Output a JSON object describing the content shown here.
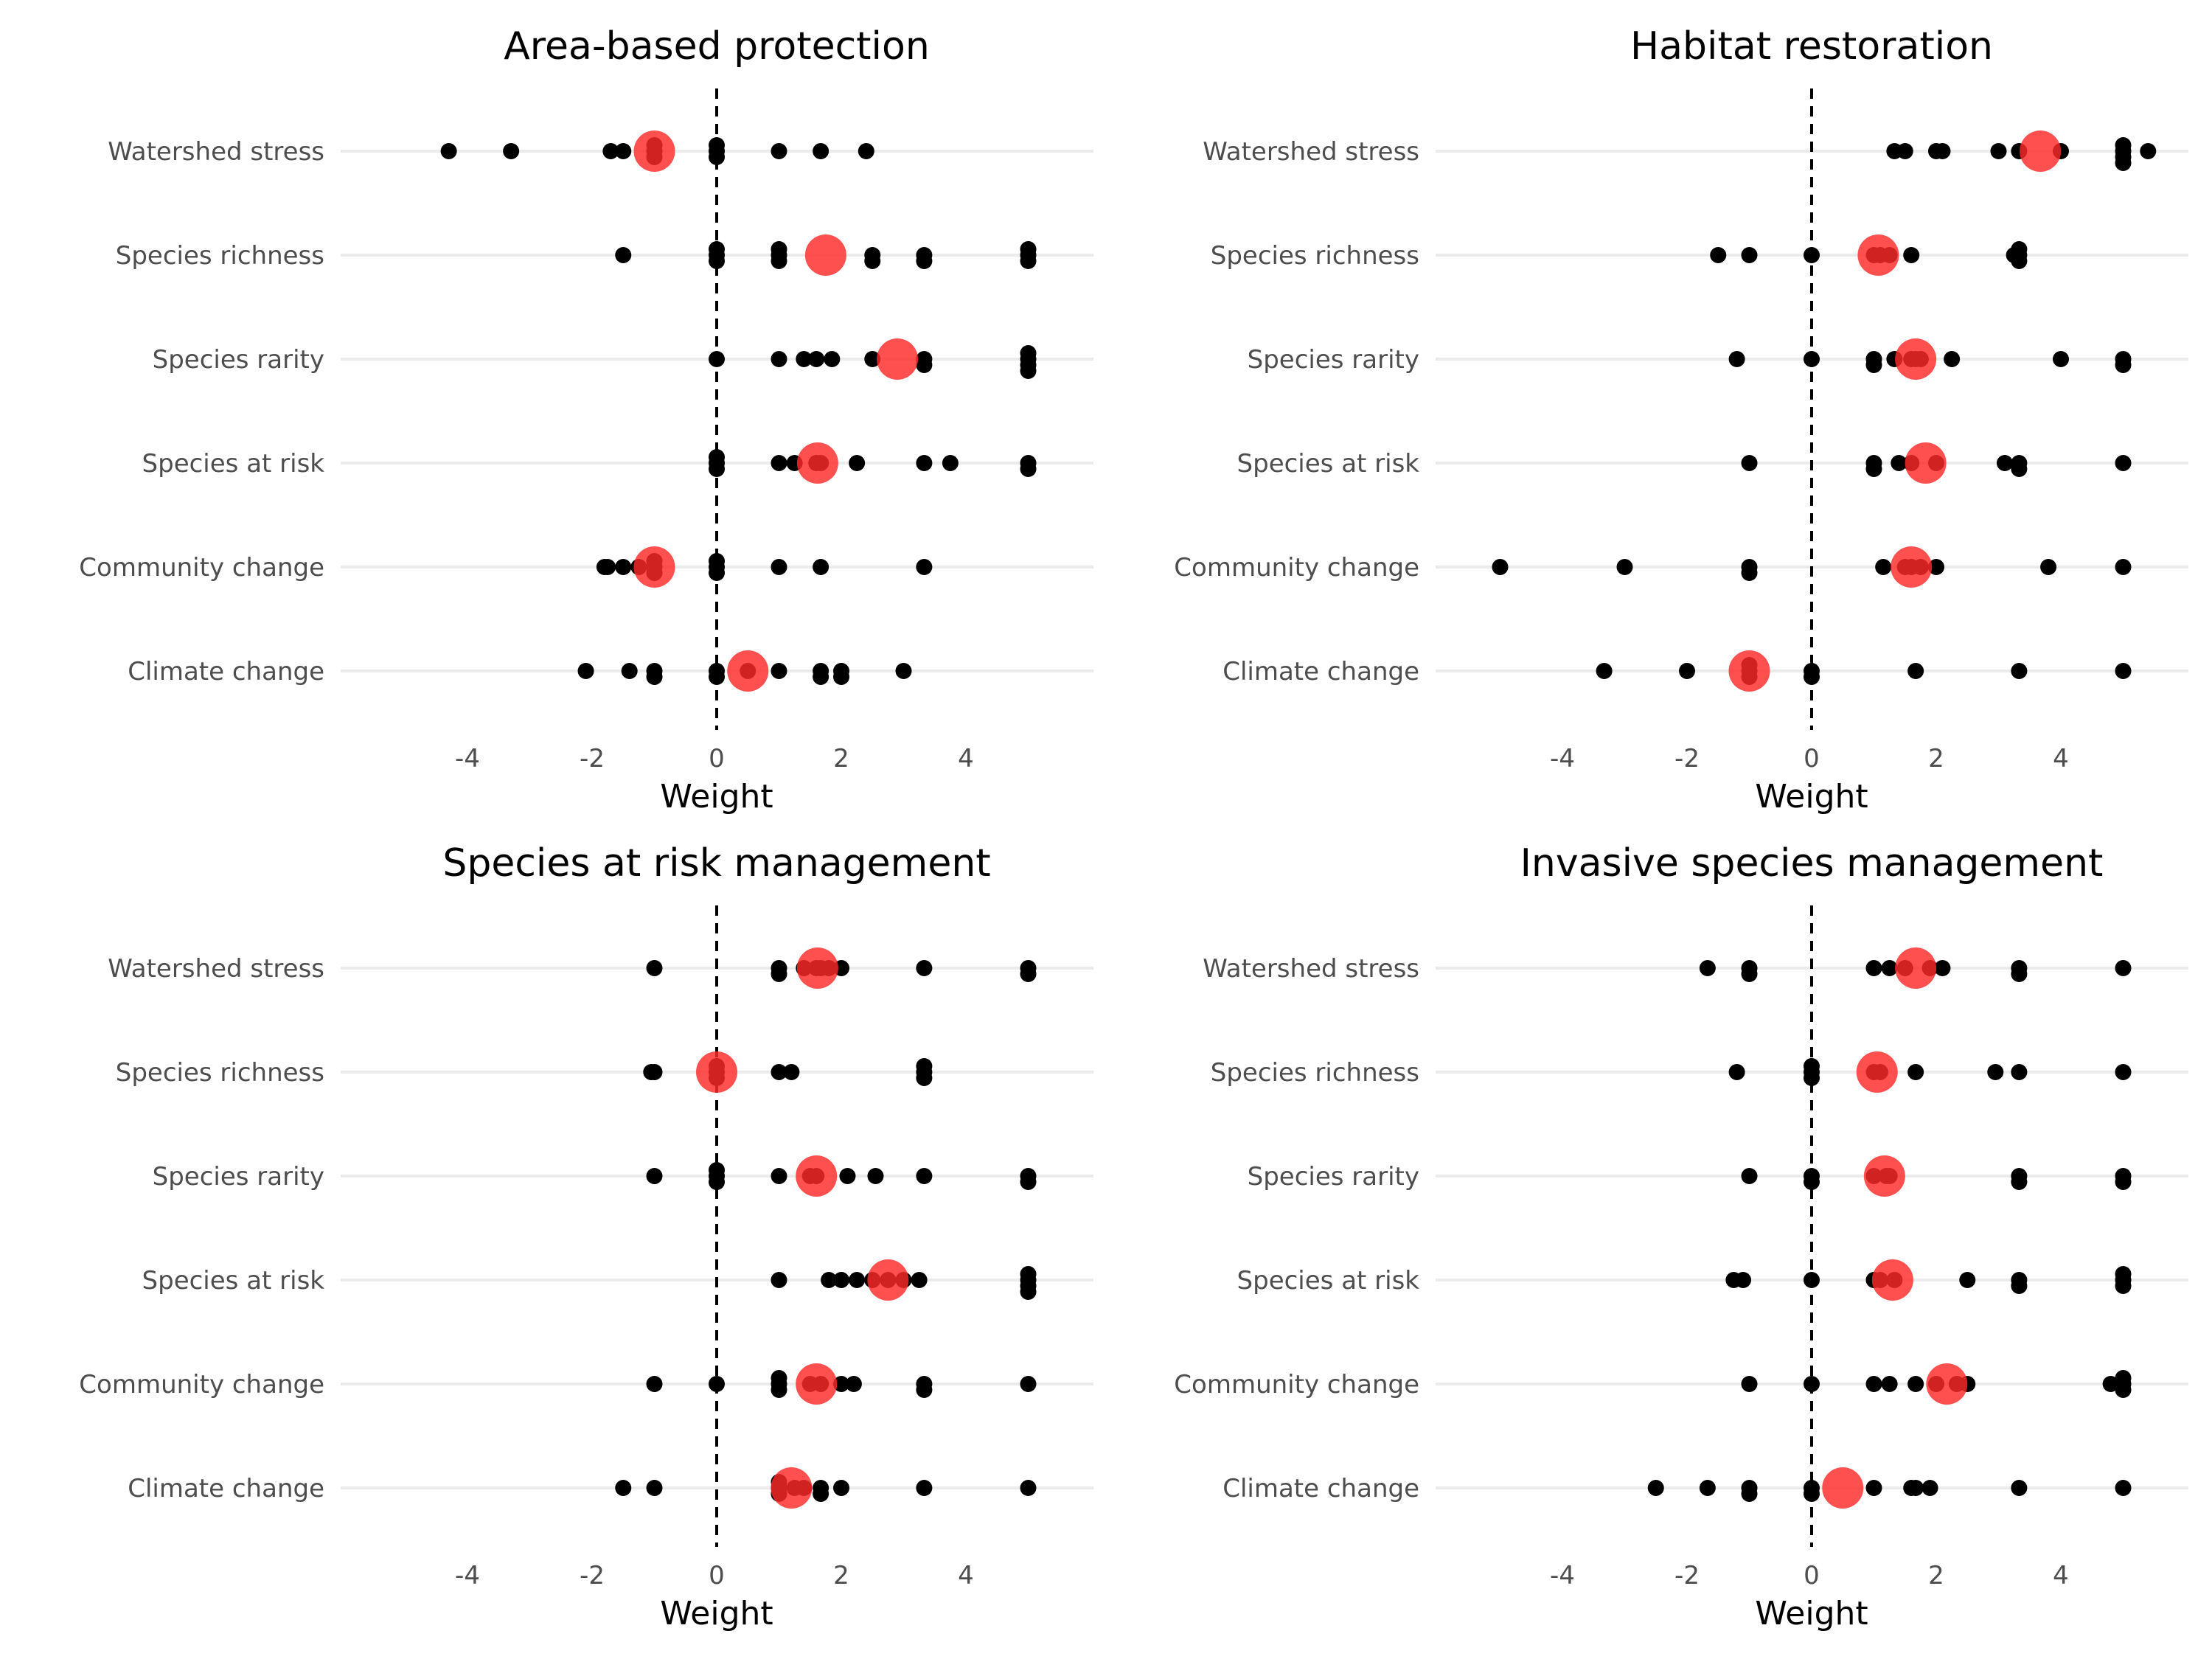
{
  "colors": {
    "background": "#ffffff",
    "gridline": "#ebebeb",
    "point": "#000000",
    "mean_point": "#ff2a2a",
    "zero_line": "#000000"
  },
  "chart_data": [
    {
      "type": "scatter",
      "title": "Area-based protection",
      "xlabel": "Weight",
      "ylabel": "",
      "xlim": [
        -6,
        6
      ],
      "xticks": [
        -4,
        -2,
        0,
        2,
        4
      ],
      "grid": "horizontal",
      "categories": [
        "Watershed stress",
        "Species richness",
        "Species rarity",
        "Species at risk",
        "Community change",
        "Climate change"
      ],
      "points": {
        "Watershed stress": [
          -4.3,
          -3.3,
          -1.7,
          -1.5,
          -1,
          -1,
          -1,
          0,
          0,
          0,
          1,
          1.67,
          2.4
        ],
        "Species richness": [
          -1.5,
          0,
          0,
          0,
          1,
          1,
          1,
          2.5,
          2.5,
          3.33,
          3.33,
          5,
          5,
          5
        ],
        "Species rarity": [
          0,
          1,
          1.4,
          1.6,
          1.85,
          2.5,
          3.33,
          3.33,
          5,
          5,
          5,
          5
        ],
        "Species at risk": [
          0,
          0,
          0,
          1,
          1.25,
          1.6,
          1.67,
          2.25,
          3.33,
          3.75,
          5,
          5
        ],
        "Community change": [
          -1.75,
          -1.8,
          -1.5,
          -1.25,
          -1,
          -1,
          -1,
          0,
          0,
          0,
          1,
          1.67,
          3.33
        ],
        "Climate change": [
          -2.1,
          -1.4,
          -1,
          -1,
          0,
          0,
          0.5,
          1,
          1.67,
          1.67,
          2,
          2,
          3
        ]
      },
      "means": [
        -1.0,
        1.75,
        2.9,
        1.62,
        -1.0,
        0.5
      ]
    },
    {
      "type": "scatter",
      "title": "Habitat restoration",
      "xlabel": "Weight",
      "ylabel": "",
      "xlim": [
        -6,
        6
      ],
      "xticks": [
        -4,
        -2,
        0,
        2,
        4
      ],
      "grid": "horizontal",
      "categories": [
        "Watershed stress",
        "Species richness",
        "Species rarity",
        "Species at risk",
        "Community change",
        "Climate change"
      ],
      "points": {
        "Watershed stress": [
          1.33,
          1.5,
          2,
          2.1,
          3,
          3.33,
          4,
          5,
          5,
          5,
          5,
          5.4
        ],
        "Species richness": [
          -1.5,
          -1,
          0,
          1,
          1.1,
          1.25,
          1.6,
          3.25,
          3.33,
          3.33,
          3.33
        ],
        "Species rarity": [
          -1.2,
          0,
          1,
          1,
          1.33,
          1.6,
          1.67,
          1.75,
          2.25,
          4,
          5,
          5
        ],
        "Species at risk": [
          -1,
          1,
          1,
          1.4,
          1.6,
          2,
          3.1,
          3.33,
          3.33,
          5
        ],
        "Community change": [
          -5,
          -3,
          -1,
          -1,
          1.15,
          1.5,
          1.6,
          1.75,
          2,
          3.8,
          5
        ],
        "Climate change": [
          -3.33,
          -2,
          -1,
          -1,
          -1,
          0,
          0,
          1.67,
          3.33,
          5
        ]
      },
      "means": [
        3.67,
        1.07,
        1.67,
        1.83,
        1.6,
        -1.0
      ]
    },
    {
      "type": "scatter",
      "title": "Species at risk management",
      "xlabel": "Weight",
      "ylabel": "",
      "xlim": [
        -6,
        6
      ],
      "xticks": [
        -4,
        -2,
        0,
        2,
        4
      ],
      "grid": "horizontal",
      "categories": [
        "Watershed stress",
        "Species richness",
        "Species rarity",
        "Species at risk",
        "Community change",
        "Climate change"
      ],
      "points": {
        "Watershed stress": [
          -1,
          1,
          1,
          1.4,
          1.6,
          1.67,
          1.8,
          2,
          3.33,
          5,
          5
        ],
        "Species richness": [
          -1,
          -1.05,
          0,
          0,
          0,
          1,
          1.2,
          3.33,
          3.33,
          3.33
        ],
        "Species rarity": [
          -1,
          0,
          0,
          0,
          1,
          1.5,
          1.6,
          2.1,
          2.55,
          3.33,
          5,
          5
        ],
        "Species at risk": [
          1,
          1.8,
          2,
          2.25,
          2.5,
          2.75,
          3,
          3.25,
          5,
          5,
          5,
          5
        ],
        "Community change": [
          -1,
          0,
          1,
          1,
          1,
          1.5,
          1.67,
          2,
          2.2,
          3.33,
          3.33,
          5
        ],
        "Climate change": [
          -1.5,
          -1,
          1,
          1,
          1,
          1.25,
          1.4,
          1.67,
          1.67,
          2,
          3.33,
          5
        ]
      },
      "means": [
        1.62,
        0.0,
        1.6,
        2.75,
        1.6,
        1.2
      ]
    },
    {
      "type": "scatter",
      "title": "Invasive species management",
      "xlabel": "Weight",
      "ylabel": "",
      "xlim": [
        -6,
        6
      ],
      "xticks": [
        -4,
        -2,
        0,
        2,
        4
      ],
      "grid": "horizontal",
      "categories": [
        "Watershed stress",
        "Species richness",
        "Species rarity",
        "Species at risk",
        "Community change",
        "Climate change"
      ],
      "points": {
        "Watershed stress": [
          -1.67,
          -1,
          -1,
          1,
          1.25,
          1.5,
          1.9,
          2.1,
          3.33,
          3.33,
          5
        ],
        "Species richness": [
          -1.2,
          0,
          0,
          0,
          1,
          1.1,
          1.67,
          2.95,
          3.33,
          5
        ],
        "Species rarity": [
          -1,
          0,
          0,
          1,
          1.2,
          1.25,
          3.33,
          3.33,
          5,
          5
        ],
        "Species at risk": [
          -1.25,
          -1.1,
          0,
          1,
          1.1,
          1.33,
          2.5,
          3.33,
          3.33,
          5,
          5,
          5
        ],
        "Community change": [
          -1,
          0,
          1,
          1.25,
          1.67,
          2,
          2.33,
          2.5,
          4.8,
          5,
          5,
          5
        ],
        "Climate change": [
          -2.5,
          -1.67,
          -1,
          -1,
          0,
          0,
          1,
          1.6,
          1.67,
          1.9,
          3.33,
          5
        ]
      },
      "means": [
        1.67,
        1.05,
        1.17,
        1.3,
        2.17,
        0.5
      ]
    }
  ]
}
